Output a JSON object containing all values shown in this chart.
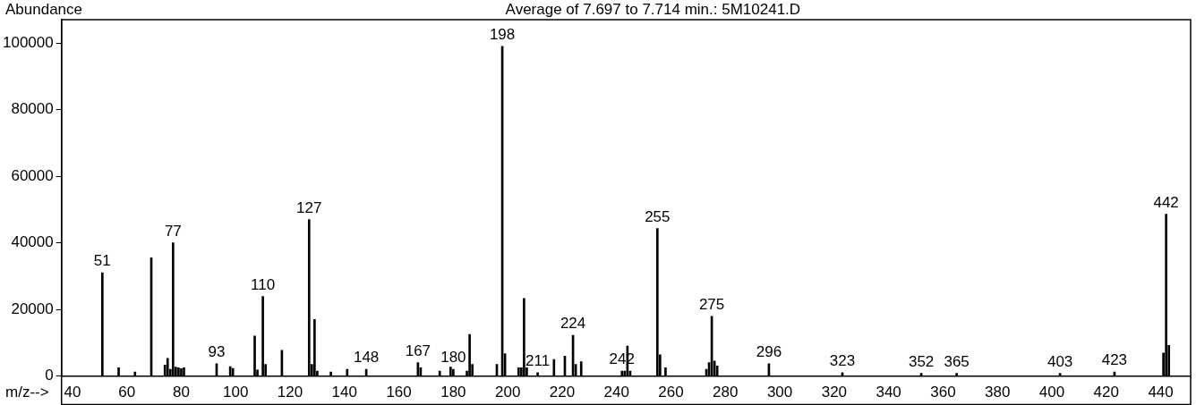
{
  "chart_data": {
    "type": "bar",
    "title": "Average of 7.697 to 7.714 min.: 5M10241.D",
    "xlabel": "m/z-->",
    "ylabel": "Abundance",
    "x": [
      51,
      57,
      63,
      69,
      74,
      75,
      76,
      77,
      78,
      79,
      80,
      81,
      93,
      98,
      99,
      107,
      108,
      110,
      111,
      117,
      127,
      128,
      129,
      130,
      135,
      141,
      148,
      167,
      168,
      175,
      179,
      180,
      185,
      186,
      187,
      196,
      198,
      199,
      204,
      205,
      206,
      207,
      211,
      217,
      221,
      224,
      225,
      227,
      242,
      243,
      244,
      245,
      255,
      256,
      258,
      273,
      274,
      275,
      276,
      277,
      296,
      323,
      352,
      365,
      403,
      423,
      441,
      442,
      443
    ],
    "values": [
      31000,
      2500,
      1200,
      35500,
      3300,
      5300,
      2000,
      40000,
      2700,
      2500,
      2200,
      2500,
      3700,
      2800,
      2300,
      12000,
      1800,
      23900,
      3500,
      7700,
      47000,
      3500,
      17000,
      1500,
      1200,
      2000,
      2000,
      4000,
      2500,
      1500,
      2700,
      2000,
      1500,
      12500,
      3500,
      3500,
      99000,
      6700,
      2500,
      2500,
      23300,
      2500,
      1000,
      5000,
      6000,
      12200,
      3500,
      4300,
      1500,
      1500,
      9000,
      1500,
      44300,
      6400,
      2500,
      2000,
      4000,
      17900,
      4500,
      3000,
      3700,
      1000,
      800,
      800,
      800,
      1200,
      6900,
      48600,
      9200
    ],
    "color": "#000000",
    "xlim": [
      36,
      451
    ],
    "xticks": [
      40,
      60,
      80,
      100,
      120,
      140,
      160,
      180,
      200,
      220,
      240,
      260,
      280,
      300,
      320,
      340,
      360,
      380,
      400,
      420,
      440
    ],
    "ylim": [
      0,
      107000
    ],
    "yticks": [
      0,
      20000,
      40000,
      60000,
      80000,
      100000
    ],
    "grid": false,
    "legend": false,
    "annotations": [
      {
        "text": "51",
        "x": 51,
        "y": 31000
      },
      {
        "text": "77",
        "x": 77,
        "y": 40000
      },
      {
        "text": "93",
        "x": 93,
        "y": 3700
      },
      {
        "text": "110",
        "x": 110,
        "y": 23900
      },
      {
        "text": "127",
        "x": 127,
        "y": 47000
      },
      {
        "text": "148",
        "x": 148,
        "y": 2000
      },
      {
        "text": "167",
        "x": 167,
        "y": 4000
      },
      {
        "text": "180",
        "x": 180,
        "y": 2000
      },
      {
        "text": "198",
        "x": 198,
        "y": 99000
      },
      {
        "text": "211",
        "x": 211,
        "y": 1000
      },
      {
        "text": "224",
        "x": 224,
        "y": 12200
      },
      {
        "text": "242",
        "x": 242,
        "y": 1500
      },
      {
        "text": "255",
        "x": 255,
        "y": 44300
      },
      {
        "text": "275",
        "x": 275,
        "y": 17900
      },
      {
        "text": "296",
        "x": 296,
        "y": 3700
      },
      {
        "text": "323",
        "x": 323,
        "y": 1000
      },
      {
        "text": "352",
        "x": 352,
        "y": 800
      },
      {
        "text": "365",
        "x": 365,
        "y": 800
      },
      {
        "text": "403",
        "x": 403,
        "y": 800
      },
      {
        "text": "423",
        "x": 423,
        "y": 1200
      },
      {
        "text": "442",
        "x": 442,
        "y": 48600
      }
    ]
  }
}
